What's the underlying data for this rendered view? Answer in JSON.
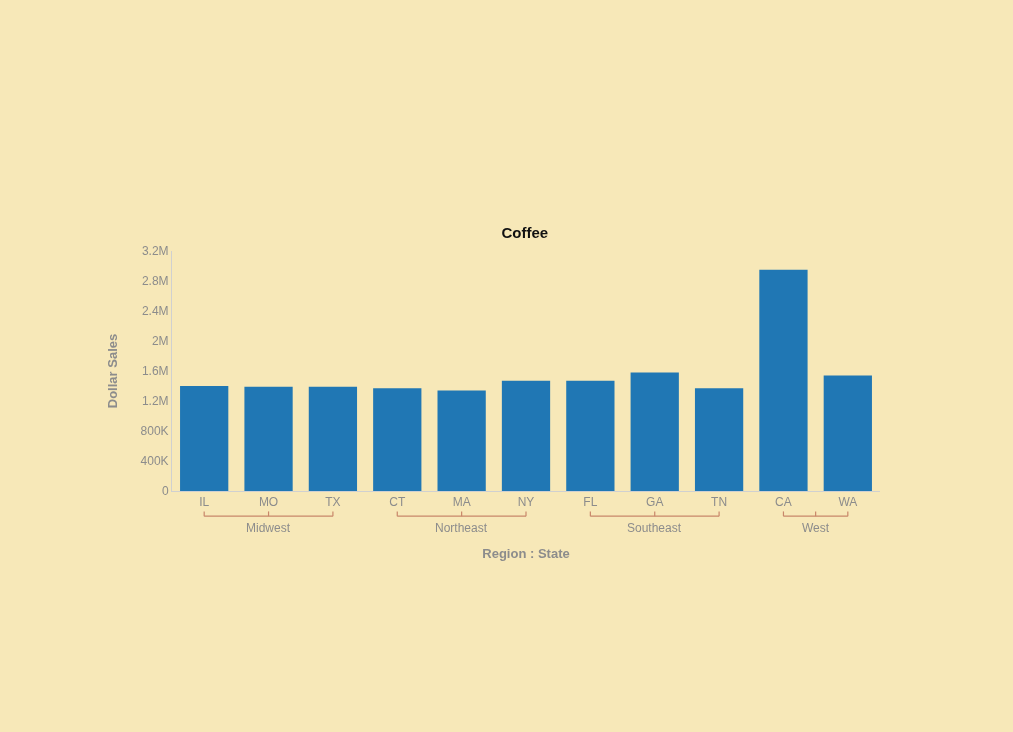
{
  "chart_data": {
    "type": "bar",
    "title": "Coffee",
    "xlabel": "Region : State",
    "ylabel": "Dollar Sales",
    "categories": [
      "IL",
      "MO",
      "TX",
      "CT",
      "MA",
      "NY",
      "FL",
      "GA",
      "TN",
      "CA",
      "WA"
    ],
    "values": [
      1400000,
      1390000,
      1390000,
      1370000,
      1340000,
      1470000,
      1470000,
      1580000,
      1370000,
      2950000,
      1540000
    ],
    "color": "#2077b4",
    "ylim": [
      0,
      3200000
    ],
    "yticks": [
      {
        "value": 0,
        "label": "0"
      },
      {
        "value": 400000,
        "label": "400K"
      },
      {
        "value": 800000,
        "label": "800K"
      },
      {
        "value": 1200000,
        "label": "1.2M"
      },
      {
        "value": 1600000,
        "label": "1.6M"
      },
      {
        "value": 2000000,
        "label": "2M"
      },
      {
        "value": 2400000,
        "label": "2.4M"
      },
      {
        "value": 2800000,
        "label": "2.8M"
      },
      {
        "value": 3200000,
        "label": "3.2M"
      }
    ],
    "annotations": [
      "Midwest",
      "Northeast",
      "Southeast",
      "West"
    ]
  }
}
